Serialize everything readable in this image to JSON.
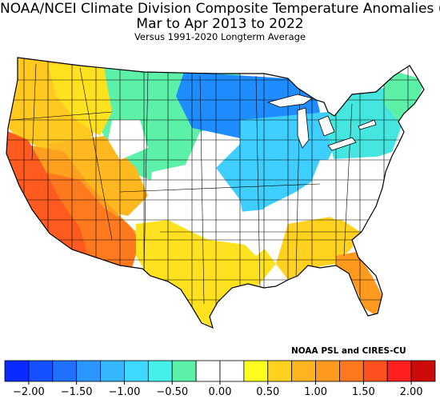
{
  "title": "NOAA/NCEI Climate Division Composite Temperature Anomalies (F)",
  "subtitle": "Mar to Apr 2013 to 2022",
  "subsubtitle": "Versus 1991-2020 Longterm Average",
  "credit": "NOAA PSL and CIRES-CU",
  "legend": {
    "colors": [
      "#0a2bff",
      "#1450ff",
      "#1f70ff",
      "#2b96ff",
      "#34b6ff",
      "#3fd9ff",
      "#46f0e8",
      "#5cf0a8",
      "#ffffff",
      "#ffffff",
      "#ffff1f",
      "#ffd21f",
      "#ffb41f",
      "#ff9a1f",
      "#ff781f",
      "#ff4f1f",
      "#ff1f1f",
      "#cc0a0a"
    ],
    "ticks": [
      "−2.00",
      "−1.50",
      "−1.00",
      "−0.50",
      "0.00",
      "0.50",
      "1.00",
      "1.50",
      "2.00"
    ]
  },
  "regions": {
    "west_coast": "#ff5a1f",
    "southwest": "#ff7a1f",
    "great_basin": "#ff9f1f",
    "mountain": "#ffb81f",
    "northwest": "#ffc91f",
    "northern_rockies": "#ffe21f",
    "plains_north": "#5cf0a8",
    "upper_midwest": "#1f8cff",
    "midwest": "#3fcfff",
    "northeast": "#46e6e0",
    "new_england": "#5cf0a8",
    "texas_south": "#ffe21f",
    "southeast": "#ffd21f",
    "florida": "#ff9a1f"
  }
}
